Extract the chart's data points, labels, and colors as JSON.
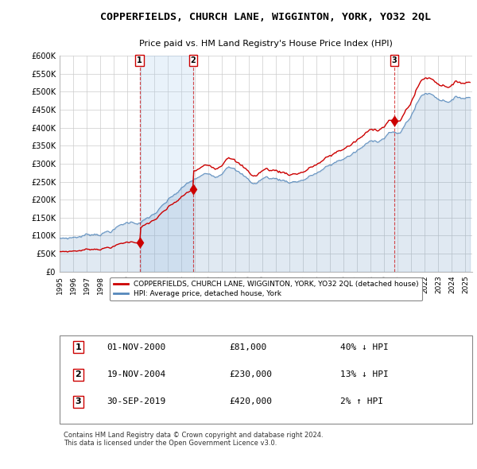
{
  "title": "COPPERFIELDS, CHURCH LANE, WIGGINTON, YORK, YO32 2QL",
  "subtitle": "Price paid vs. HM Land Registry's House Price Index (HPI)",
  "background_color": "#ffffff",
  "grid_color": "#cccccc",
  "line_color_red": "#cc0000",
  "line_color_blue": "#5588bb",
  "fill_color_blue": "#ddeeff",
  "shade_color": "#ddeeff",
  "sale_color": "#cc0000",
  "sales": [
    {
      "date_num": 2000.917,
      "price": 81000,
      "label": "1"
    },
    {
      "date_num": 2004.875,
      "price": 230000,
      "label": "2"
    },
    {
      "date_num": 2019.75,
      "price": 420000,
      "label": "3"
    }
  ],
  "shade_regions": [
    [
      2000.917,
      2004.875
    ]
  ],
  "xmin": 1995,
  "xmax": 2025.5,
  "ymin": 0,
  "ymax": 600000,
  "yticks": [
    0,
    50000,
    100000,
    150000,
    200000,
    250000,
    300000,
    350000,
    400000,
    450000,
    500000,
    550000,
    600000
  ],
  "ytick_labels": [
    "£0",
    "£50K",
    "£100K",
    "£150K",
    "£200K",
    "£250K",
    "£300K",
    "£350K",
    "£400K",
    "£450K",
    "£500K",
    "£550K",
    "£600K"
  ],
  "xticks": [
    1995,
    1996,
    1997,
    1998,
    1999,
    2000,
    2001,
    2002,
    2003,
    2004,
    2005,
    2006,
    2007,
    2008,
    2009,
    2010,
    2011,
    2012,
    2013,
    2014,
    2015,
    2016,
    2017,
    2018,
    2019,
    2020,
    2021,
    2022,
    2023,
    2024,
    2025
  ],
  "legend_red_label": "COPPERFIELDS, CHURCH LANE, WIGGINTON, YORK, YO32 2QL (detached house)",
  "legend_blue_label": "HPI: Average price, detached house, York",
  "table_rows": [
    {
      "num": "1",
      "date": "01-NOV-2000",
      "price": "£81,000",
      "hpi": "40% ↓ HPI"
    },
    {
      "num": "2",
      "date": "19-NOV-2004",
      "price": "£230,000",
      "hpi": "13% ↓ HPI"
    },
    {
      "num": "3",
      "date": "30-SEP-2019",
      "price": "£420,000",
      "hpi": "2% ↑ HPI"
    }
  ],
  "footer": "Contains HM Land Registry data © Crown copyright and database right 2024.\nThis data is licensed under the Open Government Licence v3.0."
}
